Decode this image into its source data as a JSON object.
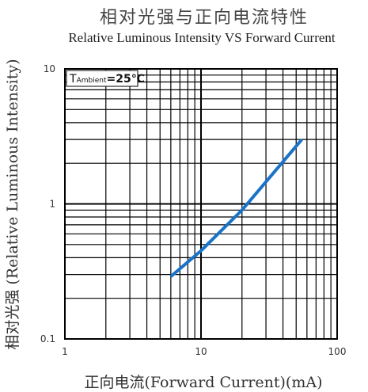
{
  "chart_data": {
    "type": "line",
    "title": "相对光强与正向电流特性",
    "subtitle": "Relative Luminous Intensity VS Forward Current",
    "xlabel": "正向电流(Forward Current)(mA)",
    "ylabel": "相对光强 (Relative Luminous Intensity)",
    "x_scale": "log",
    "y_scale": "log",
    "xlim": [
      1,
      100
    ],
    "ylim": [
      0.1,
      10
    ],
    "x_ticks": [
      "1",
      "10",
      "100"
    ],
    "y_ticks": [
      "0.1",
      "1",
      "10"
    ],
    "grid": true,
    "annotation": {
      "prefix": "T",
      "sub": "Ambient",
      "value": "=25℃"
    },
    "series": [
      {
        "color": "#1a73c8",
        "x": [
          6,
          10,
          20,
          55
        ],
        "y": [
          0.29,
          0.45,
          0.9,
          3.0
        ]
      }
    ]
  }
}
